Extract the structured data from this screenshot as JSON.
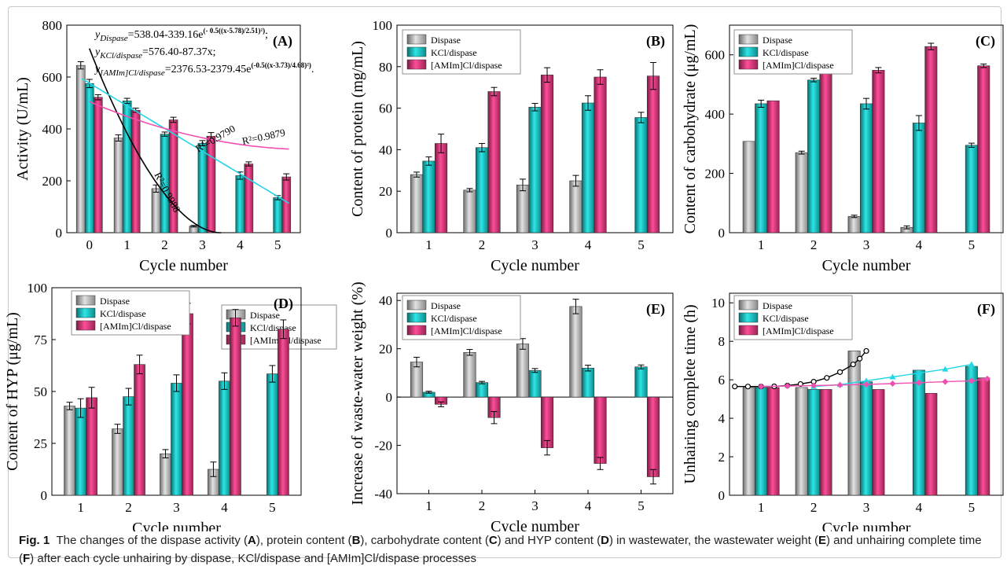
{
  "figure": {
    "caption": {
      "label": "Fig. 1",
      "parts": [
        {
          "text": "The changes of the dispase activity (",
          "bold": false
        },
        {
          "text": "A",
          "bold": true
        },
        {
          "text": "), protein content (",
          "bold": false
        },
        {
          "text": "B",
          "bold": true
        },
        {
          "text": "), carbohydrate content (",
          "bold": false
        },
        {
          "text": "C",
          "bold": true
        },
        {
          "text": ") and HYP content (",
          "bold": false
        },
        {
          "text": "D",
          "bold": true
        },
        {
          "text": ") in wastewater, the wastewater weight (",
          "bold": false
        },
        {
          "text": "E",
          "bold": true
        },
        {
          "text": ") and unhairing complete time (",
          "bold": false
        },
        {
          "text": "F",
          "bold": true
        },
        {
          "text": ") after each cycle unhairing by dispase, KCl/dispase and [AMIm]Cl/dispase processes",
          "bold": false
        }
      ]
    },
    "colors": {
      "Dispase": "#c4c4c4",
      "KCl/dispase": "#10c8c8",
      "[AMIm]Cl/dispase": "#e0307a",
      "fit_dispase": "#000000",
      "fit_kcl": "#22d6e6",
      "fit_amim": "#f050b0"
    }
  },
  "chart_data": [
    {
      "panel": "(A)",
      "type": "bar",
      "xlabel": "Cycle number",
      "ylabel": "Activity (U/mL)",
      "categories": [
        "0",
        "1",
        "2",
        "3",
        "4",
        "5"
      ],
      "ylim": [
        0,
        800
      ],
      "yticks": [
        0,
        200,
        400,
        600,
        800
      ],
      "legend": [
        "Dispase",
        "KCl/dispase",
        "[AMIm]Cl/dispase"
      ],
      "legend_position": "center-right",
      "series": [
        {
          "name": "Dispase",
          "values": [
            645,
            365,
            170,
            25,
            null,
            null
          ],
          "errors": [
            14,
            12,
            14,
            3,
            null,
            null
          ]
        },
        {
          "name": "KCl/dispase",
          "values": [
            575,
            508,
            380,
            345,
            220,
            135
          ],
          "errors": [
            16,
            10,
            8,
            10,
            14,
            8
          ]
        },
        {
          "name": "[AMIm]Cl/dispase",
          "values": [
            522,
            472,
            435,
            372,
            265,
            215
          ],
          "errors": [
            10,
            8,
            10,
            14,
            8,
            12
          ]
        }
      ],
      "equations": [
        {
          "lhs": "y",
          "sub": "Dispase",
          "rhs": "=538.04-339.16e",
          "sup": "(- 0.5((x-5.78)/2.51)²)",
          "tail": ";"
        },
        {
          "lhs": "y",
          "sub": "KCl/dispase",
          "rhs": "=576.40-87.37x;",
          "sup": "",
          "tail": ""
        },
        {
          "lhs": "y",
          "sub": "[AMIm]Cl/dispase",
          "rhs": "=2376.53-2379.45e",
          "sup": "(-0.5((x-3.73)/4.68)²)",
          "tail": "."
        }
      ],
      "r2_labels": [
        "R²=0.9988",
        "R²=0.9790",
        "R²=0.9879"
      ],
      "fit_curves": [
        {
          "name": "Dispase fit",
          "x_range": [
            0,
            3.5
          ]
        },
        {
          "name": "KCl/dispase fit",
          "x_range": [
            -0.2,
            5.3
          ]
        },
        {
          "name": "[AMIm]Cl/dispase fit",
          "x_range": [
            0,
            5.3
          ]
        }
      ]
    },
    {
      "panel": "(B)",
      "type": "bar",
      "xlabel": "Cycle number",
      "ylabel": "Content of protein (mg/mL)",
      "categories": [
        "1",
        "2",
        "3",
        "4",
        "5"
      ],
      "ylim": [
        0,
        100
      ],
      "yticks": [
        0,
        20,
        40,
        60,
        80,
        100
      ],
      "legend": [
        "Dispase",
        "KCl/dispase",
        "[AMIm]Cl/dispase"
      ],
      "legend_position": "top-left",
      "series": [
        {
          "name": "Dispase",
          "values": [
            28,
            20.5,
            23,
            25,
            null
          ],
          "errors": [
            1.2,
            0.8,
            2.8,
            2.6,
            null
          ]
        },
        {
          "name": "KCl/dispase",
          "values": [
            34.5,
            41,
            60.5,
            62.5,
            55.5
          ],
          "errors": [
            2,
            2,
            1.8,
            3.5,
            2.5
          ]
        },
        {
          "name": "[AMIm]Cl/dispase",
          "values": [
            43,
            68,
            76,
            75,
            75.5
          ],
          "errors": [
            4.5,
            2,
            3.5,
            3.5,
            6.5
          ]
        }
      ]
    },
    {
      "panel": "(C)",
      "type": "bar",
      "xlabel": "Cycle number",
      "ylabel": "Content of carbohydrate (μg/mL)",
      "categories": [
        "1",
        "2",
        "3",
        "4",
        "5"
      ],
      "ylim": [
        0,
        700
      ],
      "yticks": [
        0,
        200,
        400,
        600
      ],
      "legend": [
        "Dispase",
        "KCl/dispase",
        "[AMIm]Cl/dispase"
      ],
      "legend_position": "top-left",
      "series": [
        {
          "name": "Dispase",
          "values": [
            308,
            270,
            55,
            18,
            null
          ],
          "errors": [
            0,
            5,
            4,
            5,
            null
          ]
        },
        {
          "name": "KCl/dispase",
          "values": [
            435,
            515,
            435,
            370,
            295
          ],
          "errors": [
            12,
            6,
            18,
            25,
            7
          ]
        },
        {
          "name": "[AMIm]Cl/dispase",
          "values": [
            445,
            552,
            548,
            628,
            563
          ],
          "errors": [
            0,
            14,
            9,
            11,
            6
          ]
        }
      ]
    },
    {
      "panel": "(D)",
      "type": "bar",
      "xlabel": "Cycle number",
      "ylabel": "Content of HYP (μg/mL)",
      "categories": [
        "1",
        "2",
        "3",
        "4",
        "5"
      ],
      "ylim": [
        0,
        100
      ],
      "yticks": [
        0,
        25,
        50,
        75,
        100
      ],
      "legend": [
        "Dispase",
        "KCl/dispase",
        "[AMIm]Cl/dispase"
      ],
      "legend_position": "top-left",
      "series": [
        {
          "name": "Dispase",
          "values": [
            43,
            32,
            20,
            12.5,
            null
          ],
          "errors": [
            1.8,
            2.2,
            2,
            3.5,
            null
          ]
        },
        {
          "name": "KCl/dispase",
          "values": [
            42,
            47.5,
            54,
            55,
            58.5
          ],
          "errors": [
            4.5,
            4,
            4,
            4,
            4
          ]
        },
        {
          "name": "[AMIm]Cl/dispase",
          "values": [
            47,
            63,
            87.5,
            85.5,
            80
          ],
          "errors": [
            5,
            4.5,
            5,
            4,
            4.5
          ]
        }
      ]
    },
    {
      "panel": "(E)",
      "type": "bar",
      "xlabel": "Cycle number",
      "ylabel": "Increase  of waste-water weight (%)",
      "categories": [
        "1",
        "2",
        "3",
        "4",
        "5"
      ],
      "ylim": [
        -40,
        43
      ],
      "yticks": [
        -40,
        -20,
        0,
        20,
        40
      ],
      "legend": [
        "Dispase",
        "KCl/dispase",
        "[AMIm]Cl/dispase"
      ],
      "legend_position": "top-left",
      "series": [
        {
          "name": "Dispase",
          "values": [
            14.5,
            18.5,
            22,
            37.5,
            null
          ],
          "errors": [
            2,
            1.2,
            2.2,
            3,
            null
          ]
        },
        {
          "name": "KCl/dispase",
          "values": [
            2,
            6,
            11,
            12,
            12.5
          ],
          "errors": [
            0.4,
            0.5,
            0.8,
            1.2,
            0.8
          ]
        },
        {
          "name": "[AMIm]Cl/dispase",
          "values": [
            -3,
            -8.5,
            -21,
            -27.5,
            -33
          ],
          "errors": [
            1,
            2.5,
            3,
            2.5,
            3
          ]
        }
      ]
    },
    {
      "panel": "(F)",
      "type": "bar",
      "xlabel": "Cycle number",
      "ylabel": "Unhairing complete time (h)",
      "categories": [
        "1",
        "2",
        "3",
        "4",
        "5"
      ],
      "ylim": [
        0,
        10.5
      ],
      "yticks": [
        0,
        2,
        4,
        6,
        8,
        10
      ],
      "legend": [
        "Dispase",
        "KCl/dispase",
        "[AMIm]Cl/dispase"
      ],
      "legend_position": "top-left",
      "series": [
        {
          "name": "Dispase",
          "values": [
            5.6,
            5.6,
            7.5,
            null,
            null
          ]
        },
        {
          "name": "KCl/dispase",
          "values": [
            5.6,
            5.5,
            5.9,
            6.5,
            6.7
          ]
        },
        {
          "name": "[AMIm]Cl/dispase",
          "values": [
            5.6,
            5.5,
            5.5,
            5.3,
            6.1
          ]
        }
      ],
      "line_series": [
        {
          "name": "Dispase trend",
          "marker": "circle",
          "x": [
            0.5,
            0.75,
            1,
            1.25,
            1.5,
            1.75,
            2,
            2.25,
            2.5,
            2.75,
            2.875,
            3
          ],
          "y": [
            5.65,
            5.65,
            5.65,
            5.66,
            5.7,
            5.78,
            5.9,
            6.1,
            6.4,
            6.8,
            7.1,
            7.5
          ]
        },
        {
          "name": "KCl/dispase trend",
          "marker": "triangle",
          "x": [
            2,
            2.5,
            3,
            3.5,
            4,
            4.5,
            5
          ],
          "y": [
            5.65,
            5.75,
            5.95,
            6.15,
            6.35,
            6.55,
            6.8
          ]
        },
        {
          "name": "[AMIm]Cl/dispase trend",
          "marker": "diamond",
          "x": [
            1,
            1.5,
            2,
            2.5,
            3,
            3.5,
            4,
            4.5,
            5,
            5.3
          ],
          "y": [
            5.65,
            5.68,
            5.7,
            5.73,
            5.76,
            5.8,
            5.85,
            5.9,
            5.95,
            6.05
          ]
        }
      ]
    }
  ]
}
